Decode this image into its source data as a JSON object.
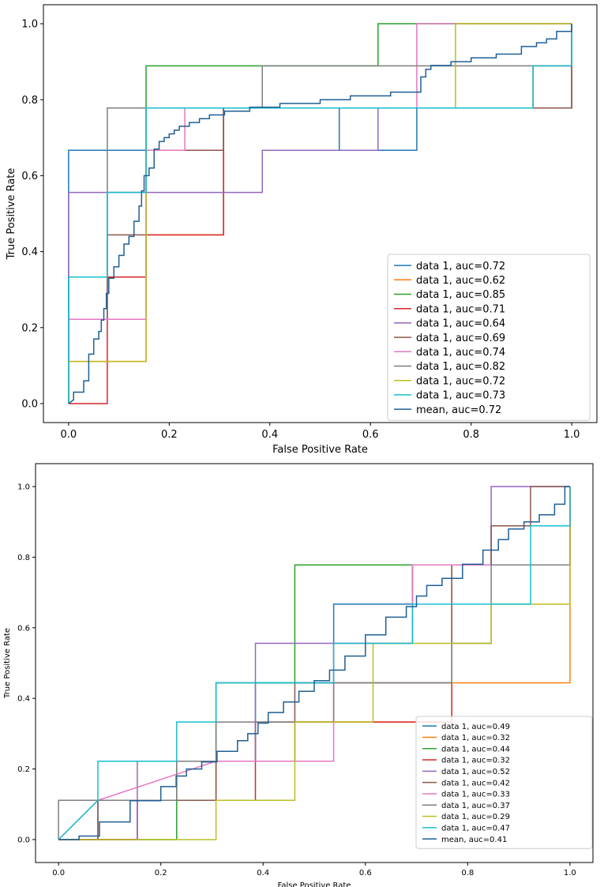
{
  "chart_data": [
    {
      "type": "line",
      "subtype": "roc",
      "title": "",
      "xlabel": "False Positive Rate",
      "ylabel": "True Positive Rate",
      "xlim": [
        0,
        1
      ],
      "ylim": [
        0,
        1
      ],
      "xticks": [
        "0.0",
        "0.2",
        "0.4",
        "0.6",
        "0.8",
        "1.0"
      ],
      "yticks": [
        "0.0",
        "0.2",
        "0.4",
        "0.6",
        "0.8",
        "1.0"
      ],
      "grid": false,
      "legend_position": "lower-right",
      "series": [
        {
          "name": "data 1, auc=0.72",
          "color": "#1f77b4",
          "x": [
            0,
            0,
            0.154,
            0.154,
            0.538,
            0.538,
            0.692,
            0.692,
            1,
            1
          ],
          "y": [
            0,
            0.667,
            0.667,
            0.778,
            0.778,
            0.667,
            0.667,
            0.778,
            0.778,
            1
          ]
        },
        {
          "name": "data 1, auc=0.62",
          "color": "#ff7f0e",
          "x": [
            0,
            0,
            0.154,
            0.154,
            0.308,
            0.308,
            0.308,
            1,
            1
          ],
          "y": [
            0,
            0.111,
            0.111,
            0.444,
            0.444,
            0.667,
            0.778,
            0.778,
            1
          ]
        },
        {
          "name": "data 1, auc=0.85",
          "color": "#2ca02c",
          "x": [
            0,
            0,
            0.077,
            0.077,
            0.154,
            0.154,
            0.615,
            0.615,
            1,
            1
          ],
          "y": [
            0,
            0.333,
            0.333,
            0.556,
            0.556,
            0.889,
            0.889,
            1,
            1,
            1
          ]
        },
        {
          "name": "data 1, auc=0.71",
          "color": "#d62728",
          "x": [
            0,
            0.077,
            0.077,
            0.154,
            0.154,
            0.308,
            0.308,
            0.923,
            0.923,
            1,
            1
          ],
          "y": [
            0,
            0,
            0.333,
            0.333,
            0.444,
            0.444,
            0.778,
            0.778,
            0.889,
            0.889,
            1
          ]
        },
        {
          "name": "data 1, auc=0.64",
          "color": "#9467bd",
          "x": [
            0,
            0,
            0.154,
            0.154,
            0.385,
            0.385,
            0.615,
            0.615,
            1,
            1
          ],
          "y": [
            0,
            0.556,
            0.556,
            0.556,
            0.556,
            0.667,
            0.667,
            0.778,
            0.778,
            1
          ]
        },
        {
          "name": "data 1, auc=0.69",
          "color": "#8c564b",
          "x": [
            0,
            0,
            0.077,
            0.077,
            0.154,
            0.154,
            0.308,
            0.308,
            0.923,
            0.923,
            1,
            1
          ],
          "y": [
            0,
            0.222,
            0.222,
            0.444,
            0.444,
            0.667,
            0.667,
            0.778,
            0.778,
            0.778,
            0.778,
            0.889
          ]
        },
        {
          "name": "data 1, auc=0.74",
          "color": "#e377c2",
          "x": [
            0,
            0,
            0.154,
            0.154,
            0.231,
            0.231,
            0.692,
            0.692,
            1,
            1
          ],
          "y": [
            0,
            0.222,
            0.222,
            0.667,
            0.667,
            0.778,
            0.778,
            1,
            1,
            1
          ]
        },
        {
          "name": "data 1, auc=0.82",
          "color": "#7f7f7f",
          "x": [
            0,
            0,
            0.077,
            0.077,
            0.385,
            0.385,
            1,
            1
          ],
          "y": [
            0,
            0.333,
            0.333,
            0.778,
            0.778,
            0.889,
            0.889,
            1
          ]
        },
        {
          "name": "data 1, auc=0.72",
          "color": "#bcbd22",
          "x": [
            0,
            0,
            0.154,
            0.154,
            0.769,
            0.769,
            1,
            1
          ],
          "y": [
            0,
            0.111,
            0.111,
            0.778,
            0.778,
            1,
            1,
            1
          ]
        },
        {
          "name": "data 1, auc=0.73",
          "color": "#17becf",
          "x": [
            0,
            0,
            0.077,
            0.077,
            0.154,
            0.154,
            0.923,
            0.923,
            1,
            1
          ],
          "y": [
            0,
            0.333,
            0.333,
            0.556,
            0.556,
            0.778,
            0.778,
            0.889,
            0.889,
            1
          ]
        },
        {
          "name": "mean, auc=0.72",
          "color": "#1f5f94",
          "x": [
            0,
            0.01,
            0.01,
            0.03,
            0.03,
            0.04,
            0.04,
            0.05,
            0.05,
            0.06,
            0.06,
            0.065,
            0.065,
            0.07,
            0.07,
            0.075,
            0.075,
            0.08,
            0.08,
            0.09,
            0.09,
            0.1,
            0.1,
            0.11,
            0.11,
            0.12,
            0.12,
            0.13,
            0.13,
            0.14,
            0.14,
            0.145,
            0.145,
            0.15,
            0.15,
            0.16,
            0.16,
            0.17,
            0.17,
            0.18,
            0.18,
            0.19,
            0.19,
            0.2,
            0.2,
            0.21,
            0.21,
            0.22,
            0.22,
            0.24,
            0.24,
            0.26,
            0.26,
            0.28,
            0.28,
            0.31,
            0.31,
            0.34,
            0.34,
            0.36,
            0.36,
            0.38,
            0.38,
            0.42,
            0.42,
            0.5,
            0.5,
            0.56,
            0.56,
            0.64,
            0.64,
            0.7,
            0.7,
            0.71,
            0.71,
            0.72,
            0.72,
            0.76,
            0.76,
            0.8,
            0.8,
            0.85,
            0.85,
            0.9,
            0.9,
            0.93,
            0.93,
            0.95,
            0.95,
            0.97,
            0.97,
            1,
            1
          ],
          "y": [
            0,
            0.01,
            0.03,
            0.03,
            0.06,
            0.06,
            0.13,
            0.13,
            0.17,
            0.17,
            0.19,
            0.19,
            0.22,
            0.22,
            0.25,
            0.25,
            0.29,
            0.29,
            0.33,
            0.33,
            0.36,
            0.36,
            0.39,
            0.39,
            0.42,
            0.42,
            0.44,
            0.44,
            0.48,
            0.48,
            0.52,
            0.52,
            0.56,
            0.56,
            0.6,
            0.6,
            0.62,
            0.62,
            0.67,
            0.67,
            0.69,
            0.69,
            0.7,
            0.7,
            0.71,
            0.71,
            0.72,
            0.72,
            0.73,
            0.73,
            0.74,
            0.74,
            0.75,
            0.75,
            0.76,
            0.76,
            0.77,
            0.77,
            0.77,
            0.77,
            0.78,
            0.78,
            0.78,
            0.78,
            0.79,
            0.79,
            0.8,
            0.8,
            0.81,
            0.81,
            0.82,
            0.82,
            0.86,
            0.86,
            0.88,
            0.88,
            0.89,
            0.89,
            0.9,
            0.9,
            0.91,
            0.91,
            0.92,
            0.92,
            0.94,
            0.94,
            0.95,
            0.95,
            0.96,
            0.96,
            0.98,
            0.98,
            1
          ]
        }
      ]
    },
    {
      "type": "line",
      "subtype": "roc",
      "title": "",
      "xlabel": "False Positive Rate",
      "ylabel": "True Positive Rate",
      "xlim": [
        0,
        1
      ],
      "ylim": [
        0,
        1
      ],
      "xticks": [
        "0.0",
        "0.2",
        "0.4",
        "0.6",
        "0.8",
        "1.0"
      ],
      "yticks": [
        "0.0",
        "0.2",
        "0.4",
        "0.6",
        "0.8",
        "1.0"
      ],
      "grid": false,
      "legend_position": "lower-right",
      "series": [
        {
          "name": "data 1, auc=0.49",
          "color": "#1f77b4",
          "x": [
            0,
            0.077,
            0.077,
            0.231,
            0.231,
            0.385,
            0.385,
            0.538,
            0.538,
            0.692,
            0.692,
            0.846,
            0.846,
            1,
            1
          ],
          "y": [
            0,
            0,
            0.111,
            0.111,
            0.222,
            0.222,
            0.444,
            0.444,
            0.667,
            0.667,
            0.778,
            0.778,
            0.889,
            0.889,
            1
          ]
        },
        {
          "name": "data 1, auc=0.32",
          "color": "#ff7f0e",
          "x": [
            0,
            0.154,
            0.154,
            0.308,
            0.308,
            0.462,
            0.462,
            0.769,
            0.769,
            1,
            1
          ],
          "y": [
            0,
            0,
            0.111,
            0.111,
            0.222,
            0.222,
            0.333,
            0.333,
            0.444,
            0.444,
            1
          ]
        },
        {
          "name": "data 1, auc=0.44",
          "color": "#2ca02c",
          "x": [
            0,
            0.231,
            0.231,
            0.308,
            0.308,
            0.462,
            0.462,
            0.692,
            0.692,
            1,
            1
          ],
          "y": [
            0,
            0,
            0.222,
            0.222,
            0.444,
            0.444,
            0.778,
            0.778,
            0.778,
            0.778,
            1
          ]
        },
        {
          "name": "data 1, auc=0.32",
          "color": "#d62728",
          "x": [
            0,
            0.154,
            0.154,
            0.385,
            0.385,
            0.615,
            0.615,
            0.769,
            0.769,
            1,
            1
          ],
          "y": [
            0,
            0,
            0.111,
            0.111,
            0.333,
            0.333,
            0.333,
            0.333,
            0.778,
            0.778,
            1
          ]
        },
        {
          "name": "data 1, auc=0.52",
          "color": "#9467bd",
          "x": [
            0,
            0.154,
            0.154,
            0.385,
            0.385,
            0.692,
            0.692,
            0.846,
            0.846,
            1
          ],
          "y": [
            0,
            0,
            0.222,
            0.222,
            0.556,
            0.556,
            0.778,
            0.778,
            1,
            1
          ]
        },
        {
          "name": "data 1, auc=0.42",
          "color": "#8c564b",
          "x": [
            0,
            0.077,
            0.077,
            0.308,
            0.308,
            0.462,
            0.462,
            0.769,
            0.769,
            0.846,
            0.846,
            0.923,
            0.923,
            1,
            1
          ],
          "y": [
            0,
            0,
            0.111,
            0.111,
            0.222,
            0.222,
            0.444,
            0.444,
            0.778,
            0.778,
            0.889,
            0.889,
            1,
            1,
            1
          ]
        },
        {
          "name": "data 1, auc=0.33",
          "color": "#e377c2",
          "x": [
            0,
            0.077,
            0.308,
            0.538,
            0.538,
            0.692,
            0.692,
            0.769,
            0.769,
            1,
            1
          ],
          "y": [
            0,
            0.111,
            0.222,
            0.222,
            0.556,
            0.556,
            0.778,
            0.778,
            0.778,
            0.778,
            1
          ]
        },
        {
          "name": "data 1, auc=0.37",
          "color": "#7f7f7f",
          "x": [
            0,
            0,
            0.231,
            0.231,
            0.308,
            0.308,
            0.538,
            0.538,
            0.769,
            0.769,
            0.846,
            0.846,
            1,
            1
          ],
          "y": [
            0,
            0.111,
            0.111,
            0.222,
            0.222,
            0.333,
            0.333,
            0.444,
            0.444,
            0.556,
            0.556,
            0.778,
            0.778,
            1
          ]
        },
        {
          "name": "data 1, auc=0.29",
          "color": "#bcbd22",
          "x": [
            0,
            0.308,
            0.308,
            0.462,
            0.462,
            0.615,
            0.615,
            0.846,
            0.846,
            0.923,
            0.923,
            1,
            1
          ],
          "y": [
            0,
            0,
            0.111,
            0.111,
            0.333,
            0.333,
            0.556,
            0.556,
            0.667,
            0.667,
            0.667,
            0.667,
            1
          ]
        },
        {
          "name": "data 1, auc=0.47",
          "color": "#17becf",
          "x": [
            0,
            0.077,
            0.077,
            0.231,
            0.231,
            0.308,
            0.308,
            0.538,
            0.538,
            0.692,
            0.692,
            0.923,
            0.923,
            1,
            1
          ],
          "y": [
            0,
            0.111,
            0.222,
            0.222,
            0.333,
            0.333,
            0.444,
            0.444,
            0.556,
            0.556,
            0.667,
            0.667,
            0.889,
            0.889,
            1
          ]
        },
        {
          "name": "mean, auc=0.41",
          "color": "#1f5f94",
          "x": [
            0,
            0.04,
            0.04,
            0.08,
            0.08,
            0.14,
            0.14,
            0.2,
            0.2,
            0.23,
            0.23,
            0.25,
            0.25,
            0.28,
            0.28,
            0.31,
            0.31,
            0.35,
            0.35,
            0.37,
            0.37,
            0.39,
            0.39,
            0.41,
            0.41,
            0.44,
            0.44,
            0.47,
            0.47,
            0.5,
            0.5,
            0.53,
            0.53,
            0.56,
            0.56,
            0.6,
            0.6,
            0.64,
            0.64,
            0.68,
            0.68,
            0.7,
            0.7,
            0.72,
            0.72,
            0.75,
            0.75,
            0.79,
            0.79,
            0.83,
            0.83,
            0.86,
            0.86,
            0.88,
            0.88,
            0.91,
            0.91,
            0.94,
            0.94,
            0.97,
            0.97,
            0.99,
            0.99,
            1
          ],
          "y": [
            0,
            0,
            0.01,
            0.01,
            0.05,
            0.05,
            0.11,
            0.11,
            0.15,
            0.15,
            0.18,
            0.18,
            0.2,
            0.2,
            0.22,
            0.22,
            0.25,
            0.25,
            0.28,
            0.28,
            0.3,
            0.3,
            0.33,
            0.33,
            0.36,
            0.36,
            0.39,
            0.39,
            0.42,
            0.42,
            0.45,
            0.45,
            0.48,
            0.48,
            0.52,
            0.52,
            0.58,
            0.58,
            0.63,
            0.63,
            0.66,
            0.66,
            0.69,
            0.69,
            0.72,
            0.72,
            0.74,
            0.74,
            0.78,
            0.78,
            0.82,
            0.82,
            0.85,
            0.85,
            0.88,
            0.88,
            0.9,
            0.9,
            0.92,
            0.92,
            0.95,
            0.95,
            1,
            1
          ]
        }
      ]
    }
  ]
}
